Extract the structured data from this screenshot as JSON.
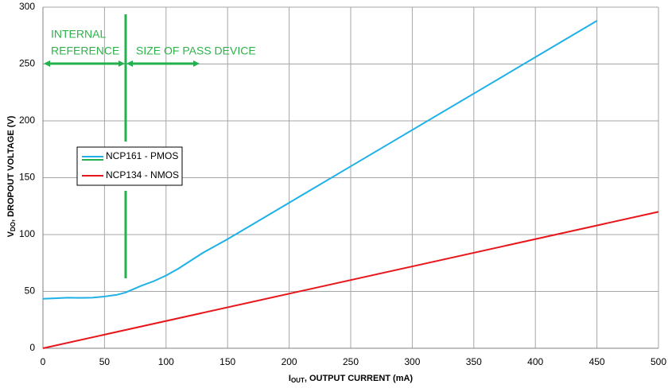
{
  "chart_data": {
    "type": "line",
    "x_label": {
      "main": "I",
      "sub": "OUT",
      "rest": ", OUTPUT CURRENT (mA)"
    },
    "y_label": {
      "main": "V",
      "sub": "DO",
      "rest": ", DROPOUT VOLTAGE (V)"
    },
    "annotations": [
      "INTERNAL",
      "REFERENCE",
      "SIZE OF PASS DEVICE"
    ],
    "series": [
      {
        "name": "NCP161 - PMOS",
        "color": "#1eb0e8",
        "x": [
          0,
          10,
          20,
          30,
          40,
          50,
          60,
          67,
          80,
          90,
          100,
          110,
          120,
          130,
          150,
          200,
          250,
          300,
          350,
          400,
          450
        ],
        "values": [
          43.5,
          44,
          44.5,
          44.3,
          44.5,
          45.5,
          47,
          49,
          55,
          59,
          64,
          70,
          77,
          84,
          96,
          128,
          160,
          192,
          224,
          256,
          288
        ]
      },
      {
        "name": "NCP134 - NMOS",
        "color": "#e8161b",
        "x": [
          0,
          500
        ],
        "values": [
          0,
          120
        ]
      }
    ],
    "xlim": [
      0,
      500
    ],
    "xticks": [
      0,
      50,
      100,
      150,
      200,
      250,
      300,
      350,
      400,
      450,
      500
    ],
    "ylim": [
      0,
      300
    ],
    "yticks": [
      0,
      50,
      100,
      150,
      200,
      250,
      300
    ],
    "grid": true
  }
}
